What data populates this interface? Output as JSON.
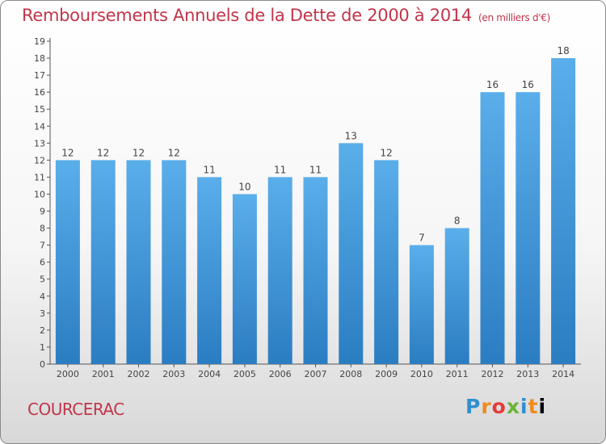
{
  "header": {
    "title": "Remboursements Annuels de la Dette de 2000 à 2014",
    "unit": "(en milliers d'€)"
  },
  "footer": {
    "commune": "COURCERAC",
    "logo_text": "Proxiti"
  },
  "colors": {
    "bar_top": "#5aaeea",
    "bar_bottom": "#2b7dc2",
    "title": "#c2354a",
    "label": "#444444"
  },
  "chart_data": {
    "type": "bar",
    "title": "Remboursements Annuels de la Dette de 2000 à 2014",
    "xlabel": "",
    "ylabel": "",
    "categories": [
      "2000",
      "2001",
      "2002",
      "2003",
      "2004",
      "2005",
      "2006",
      "2007",
      "2008",
      "2009",
      "2010",
      "2011",
      "2012",
      "2013",
      "2014"
    ],
    "values": [
      12,
      12,
      12,
      12,
      11,
      10,
      11,
      11,
      13,
      12,
      7,
      8,
      16,
      16,
      18
    ],
    "ylim": [
      0,
      19
    ],
    "yticks": [
      0,
      1,
      2,
      3,
      4,
      5,
      6,
      7,
      8,
      9,
      10,
      11,
      12,
      13,
      14,
      15,
      16,
      17,
      18,
      19
    ],
    "grid": false,
    "legend": "none"
  }
}
